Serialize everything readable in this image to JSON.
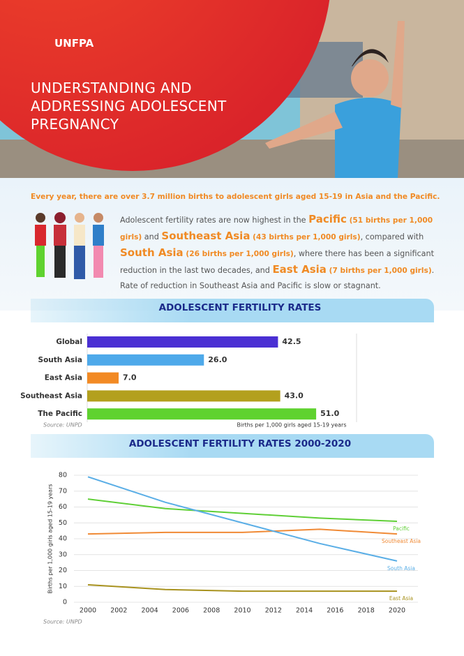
{
  "header": {
    "logo": "UNFPA",
    "title": "UNDERSTANDING AND ADDRESSING ADOLESCENT PREGNANCY"
  },
  "intro": {
    "headline": "Every year, there are over 3.7 million births to adolescent girls aged 15-19 in Asia and the Pacific.",
    "paragraph": [
      "Adolescent fertility rates are now highest in the ",
      "Pacific",
      " (51 births per 1,000 girls)",
      " and ",
      "Southeast Asia",
      " (43 births per 1,000 girls)",
      ", compared with ",
      "South Asia",
      " (26 births per 1,000 girls)",
      ", where there has been a significant reduction in the last two decades, and ",
      "East Asia",
      " (7 births per 1,000 girls)",
      ". Rate of reduction in Southeast Asia and Pacific is slow or stagnant."
    ]
  },
  "chart_data": [
    {
      "type": "bar",
      "title": "ADOLESCENT FERTILITY RATES",
      "orientation": "horizontal",
      "categories": [
        "Global",
        "South Asia",
        "East Asia",
        "Southeast Asia",
        "The Pacific"
      ],
      "values": [
        42.5,
        26.0,
        7.0,
        43.0,
        51.0
      ],
      "value_labels": [
        "42.5",
        "26.0",
        "7.0",
        "43.0",
        "51.0"
      ],
      "colors": [
        "#4a2fd3",
        "#4ea9ea",
        "#f28a24",
        "#b3a01e",
        "#5fd22f"
      ],
      "xlim": [
        0,
        60
      ],
      "xlabel": "Births per 1,000 girls aged 15-19 years",
      "source": "Source: UNPD"
    },
    {
      "type": "line",
      "title": "ADOLESCENT FERTILITY RATES 2000-2020",
      "x": [
        2000,
        2005,
        2010,
        2015,
        2020
      ],
      "series": [
        {
          "name": "Pacific",
          "color": "#5fcf36",
          "values": [
            65,
            59,
            56,
            53,
            51
          ]
        },
        {
          "name": "Southeast Asia",
          "color": "#f08a35",
          "values": [
            43,
            44,
            44,
            46,
            43
          ]
        },
        {
          "name": "South Asia",
          "color": "#5aaee6",
          "values": [
            79,
            63,
            50,
            37,
            26
          ]
        },
        {
          "name": "East Asia",
          "color": "#a8921e",
          "values": [
            11,
            8,
            7,
            7,
            7
          ]
        }
      ],
      "xlim": [
        2000,
        2020
      ],
      "xticks": [
        2000,
        2002,
        2004,
        2006,
        2008,
        2010,
        2012,
        2014,
        2016,
        2018,
        2020
      ],
      "ylim": [
        0,
        80
      ],
      "yticks": [
        0,
        10,
        20,
        30,
        40,
        50,
        60,
        70,
        80
      ],
      "grid": true,
      "ylabel": "Births per 1,000 girls aged 15-19 years",
      "source": "Source: UNPD"
    }
  ]
}
